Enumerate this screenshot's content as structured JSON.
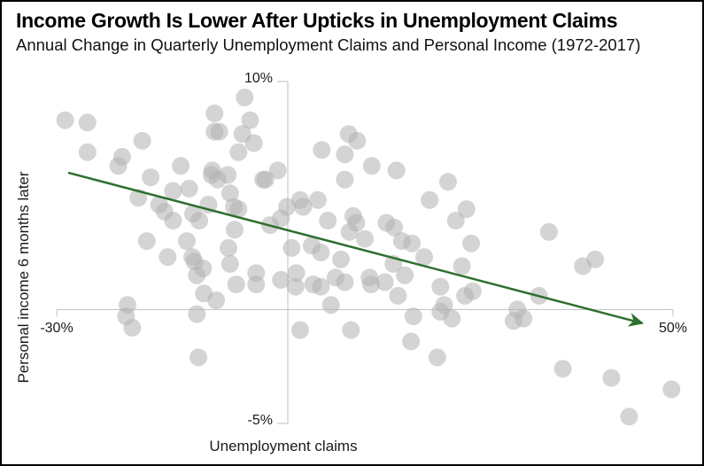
{
  "chart_data": {
    "type": "scatter",
    "title": "Income Growth Is Lower After Upticks in Unemployment Claims",
    "subtitle": "Annual Change in Quarterly Unemployment Claims and Personal Income (1972-2017)",
    "xlabel": "Unemployment claims",
    "ylabel": "Personal income 6 months later",
    "xlim": [
      -30,
      50
    ],
    "ylim": [
      -5,
      10
    ],
    "x_tick_labels": [
      "-30%",
      "50%"
    ],
    "y_tick_labels": [
      "-5%",
      "10%"
    ],
    "grid": false,
    "legend": false,
    "point_color": "#b4b4b4",
    "point_opacity": 0.57,
    "point_radius_px": 10,
    "axis_color": "#bfbfbf",
    "trend_line": {
      "x1": -28.5,
      "y1": 6.0,
      "x2": 46.0,
      "y2": -0.6,
      "color": "#2e6f2e"
    },
    "points": [
      [
        -28.9,
        8.3
      ],
      [
        -26.0,
        8.2
      ],
      [
        -26.0,
        6.9
      ],
      [
        -18.9,
        7.4
      ],
      [
        -21.5,
        6.7
      ],
      [
        -22.0,
        6.3
      ],
      [
        -17.8,
        5.8
      ],
      [
        -13.9,
        6.3
      ],
      [
        -14.9,
        5.2
      ],
      [
        -19.4,
        4.9
      ],
      [
        -16.7,
        4.6
      ],
      [
        -16.0,
        4.3
      ],
      [
        -14.9,
        3.9
      ],
      [
        -12.8,
        5.3
      ],
      [
        -12.3,
        4.2
      ],
      [
        -11.5,
        3.9
      ],
      [
        -18.3,
        3.0
      ],
      [
        -13.1,
        3.0
      ],
      [
        -9.5,
        8.6
      ],
      [
        -9.5,
        7.8
      ],
      [
        -8.9,
        7.8
      ],
      [
        -4.9,
        8.3
      ],
      [
        -5.9,
        7.7
      ],
      [
        -5.6,
        9.3
      ],
      [
        -6.4,
        6.9
      ],
      [
        -4.4,
        7.3
      ],
      [
        -9.8,
        6.1
      ],
      [
        -9.9,
        5.9
      ],
      [
        -7.8,
        5.9
      ],
      [
        -3.2,
        5.7
      ],
      [
        -9.1,
        5.7
      ],
      [
        -7.5,
        5.1
      ],
      [
        -7.0,
        4.5
      ],
      [
        -6.4,
        4.4
      ],
      [
        -10.3,
        4.6
      ],
      [
        -6.9,
        3.5
      ],
      [
        -7.7,
        2.7
      ],
      [
        7.9,
        7.7
      ],
      [
        9.0,
        7.4
      ],
      [
        4.4,
        7.0
      ],
      [
        7.4,
        6.8
      ],
      [
        10.9,
        6.3
      ],
      [
        7.4,
        5.7
      ],
      [
        14.1,
        6.1
      ],
      [
        20.8,
        5.6
      ],
      [
        -1.3,
        6.1
      ],
      [
        -2.9,
        5.7
      ],
      [
        1.6,
        4.8
      ],
      [
        2.0,
        4.5
      ],
      [
        -0.1,
        4.5
      ],
      [
        -0.9,
        4.0
      ],
      [
        -2.3,
        3.7
      ],
      [
        3.9,
        4.8
      ],
      [
        5.2,
        3.9
      ],
      [
        8.5,
        4.1
      ],
      [
        8.9,
        3.8
      ],
      [
        8.0,
        3.4
      ],
      [
        10.0,
        3.1
      ],
      [
        12.8,
        3.8
      ],
      [
        13.8,
        3.6
      ],
      [
        14.8,
        3.0
      ],
      [
        16.1,
        2.9
      ],
      [
        18.4,
        4.8
      ],
      [
        23.2,
        4.4
      ],
      [
        21.8,
        3.9
      ],
      [
        23.8,
        2.9
      ],
      [
        3.1,
        2.8
      ],
      [
        4.3,
        2.5
      ],
      [
        0.5,
        2.7
      ],
      [
        33.9,
        3.4
      ],
      [
        -15.6,
        2.3
      ],
      [
        -12.4,
        2.3
      ],
      [
        -12.1,
        2.1
      ],
      [
        -11.0,
        1.8
      ],
      [
        -11.8,
        1.5
      ],
      [
        -7.5,
        2.0
      ],
      [
        -4.1,
        1.6
      ],
      [
        -6.7,
        1.1
      ],
      [
        -4.1,
        1.1
      ],
      [
        -10.9,
        0.7
      ],
      [
        -9.3,
        0.4
      ],
      [
        -20.8,
        0.2
      ],
      [
        -21.0,
        -0.3
      ],
      [
        -20.2,
        -0.8
      ],
      [
        -11.8,
        -0.2
      ],
      [
        -11.6,
        -2.1
      ],
      [
        -0.9,
        1.3
      ],
      [
        1.1,
        1.6
      ],
      [
        1.0,
        1.0
      ],
      [
        3.3,
        1.1
      ],
      [
        4.3,
        1.0
      ],
      [
        6.2,
        1.4
      ],
      [
        6.9,
        2.2
      ],
      [
        7.4,
        1.2
      ],
      [
        10.6,
        1.4
      ],
      [
        10.8,
        1.1
      ],
      [
        12.6,
        1.2
      ],
      [
        13.7,
        2.0
      ],
      [
        15.2,
        1.5
      ],
      [
        14.3,
        0.6
      ],
      [
        17.7,
        2.3
      ],
      [
        19.8,
        1.0
      ],
      [
        20.3,
        0.2
      ],
      [
        21.3,
        -0.4
      ],
      [
        22.6,
        1.9
      ],
      [
        23.0,
        0.6
      ],
      [
        24.0,
        0.8
      ],
      [
        19.8,
        -0.1
      ],
      [
        16.3,
        -0.3
      ],
      [
        1.6,
        -0.9
      ],
      [
        8.2,
        -0.9
      ],
      [
        16.0,
        -1.4
      ],
      [
        19.4,
        -2.1
      ],
      [
        5.6,
        0.2
      ],
      [
        38.3,
        1.9
      ],
      [
        39.9,
        2.2
      ],
      [
        32.6,
        0.6
      ],
      [
        29.8,
        0.0
      ],
      [
        29.3,
        -0.5
      ],
      [
        30.6,
        -0.4
      ],
      [
        35.7,
        -2.6
      ],
      [
        42.0,
        -3.0
      ],
      [
        49.8,
        -3.5
      ],
      [
        44.3,
        -4.7
      ]
    ]
  }
}
